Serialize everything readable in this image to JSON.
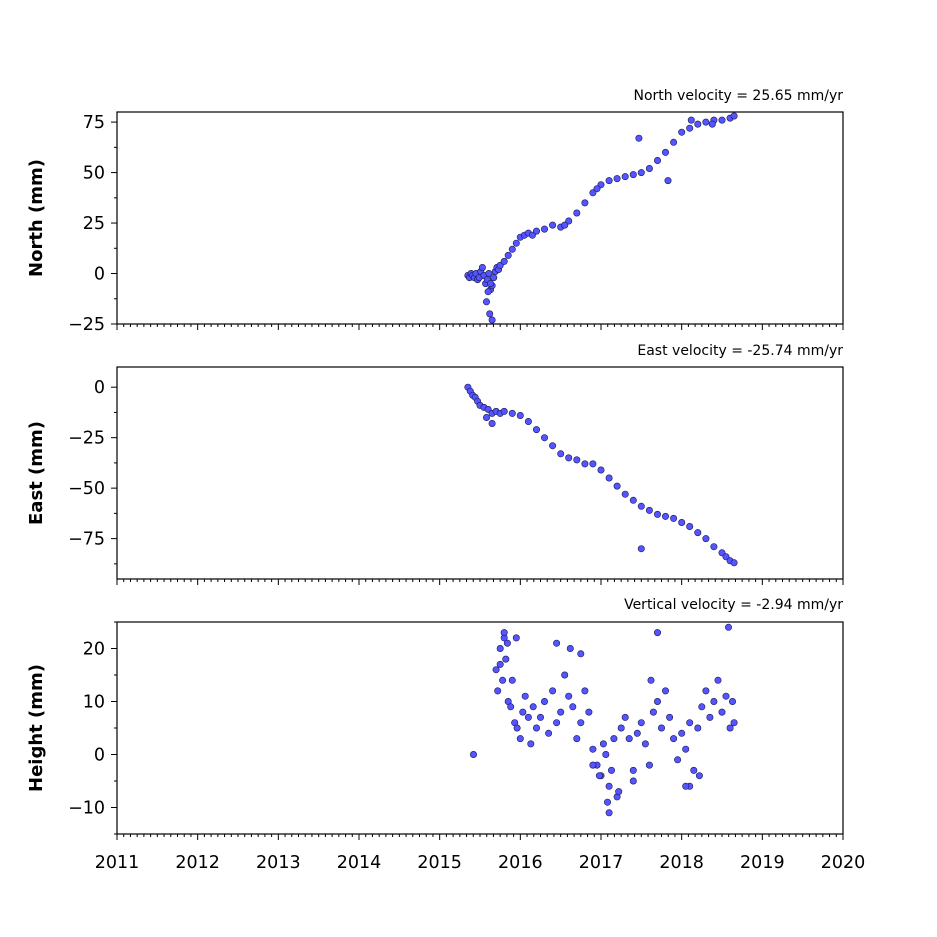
{
  "chart_data": [
    {
      "type": "scatter",
      "title": "North velocity = 25.65 mm/yr",
      "ylabel": "North (mm)",
      "xlim": [
        2011,
        2020
      ],
      "ylim": [
        -25,
        80
      ],
      "yticks": [
        -25,
        0,
        25,
        50,
        75
      ],
      "ytick_labels": [
        "−25",
        "0",
        "25",
        "50",
        "75"
      ],
      "marker_color": "#5555ff",
      "series": [
        {
          "x": [
            2015.35,
            2015.37,
            2015.39,
            2015.41,
            2015.43,
            2015.45,
            2015.47,
            2015.49,
            2015.51,
            2015.53,
            2015.55,
            2015.57,
            2015.59,
            2015.61,
            2015.63,
            2015.65,
            2015.67,
            2015.69,
            2015.71,
            2015.73,
            2015.75,
            2015.8,
            2015.85,
            2015.9,
            2015.95,
            2016.0,
            2016.05,
            2016.1,
            2016.15,
            2016.2,
            2016.3,
            2016.4,
            2016.5,
            2016.6,
            2016.7,
            2016.8,
            2016.9,
            2017.0,
            2017.1,
            2017.2,
            2017.3,
            2017.4,
            2017.5,
            2017.6,
            2017.7,
            2017.8,
            2017.9,
            2018.0,
            2018.1,
            2018.2,
            2018.3,
            2018.4,
            2018.5,
            2018.6,
            2018.65,
            2017.47,
            2017.83,
            2015.58,
            2015.62,
            2015.65,
            2015.6,
            2015.63,
            2018.12,
            2018.38,
            2016.55,
            2016.95
          ],
          "y": [
            -1,
            -2,
            0,
            -1,
            -2,
            0,
            -3,
            -2,
            1,
            3,
            -1,
            -5,
            -3,
            0,
            -8,
            -6,
            -2,
            1,
            3,
            2,
            4,
            6,
            9,
            12,
            15,
            18,
            19,
            20,
            19,
            21,
            22,
            24,
            23,
            26,
            30,
            35,
            40,
            44,
            46,
            47,
            48,
            49,
            50,
            52,
            56,
            60,
            65,
            70,
            72,
            74,
            75,
            76,
            76,
            77,
            78,
            67,
            46,
            -14,
            -20,
            -23,
            -9,
            -5,
            76,
            74,
            24,
            42
          ]
        }
      ]
    },
    {
      "type": "scatter",
      "title": "East velocity = -25.74 mm/yr",
      "ylabel": "East (mm)",
      "xlim": [
        2011,
        2020
      ],
      "ylim": [
        -95,
        10
      ],
      "yticks": [
        -75,
        -50,
        -25,
        0
      ],
      "ytick_labels": [
        "−75",
        "−50",
        "−25",
        "0"
      ],
      "marker_color": "#5555ff",
      "series": [
        {
          "x": [
            2015.35,
            2015.38,
            2015.41,
            2015.44,
            2015.47,
            2015.5,
            2015.55,
            2015.6,
            2015.65,
            2015.7,
            2015.75,
            2015.8,
            2015.9,
            2016.0,
            2016.1,
            2016.2,
            2016.3,
            2016.4,
            2016.5,
            2016.6,
            2016.7,
            2016.8,
            2016.9,
            2017.0,
            2017.1,
            2017.2,
            2017.3,
            2017.4,
            2017.5,
            2017.6,
            2017.7,
            2017.8,
            2017.9,
            2018.0,
            2018.1,
            2018.2,
            2018.3,
            2018.4,
            2018.5,
            2018.55,
            2018.6,
            2018.65,
            2017.5,
            2015.65,
            2015.58
          ],
          "y": [
            0,
            -2,
            -4,
            -5,
            -7,
            -9,
            -10,
            -11,
            -13,
            -12,
            -13,
            -12,
            -13,
            -14,
            -17,
            -21,
            -25,
            -29,
            -33,
            -35,
            -36,
            -38,
            -38,
            -41,
            -45,
            -49,
            -53,
            -56,
            -59,
            -61,
            -63,
            -64,
            -65,
            -67,
            -69,
            -72,
            -75,
            -79,
            -82,
            -84,
            -86,
            -87,
            -80,
            -18,
            -15
          ]
        }
      ]
    },
    {
      "type": "scatter",
      "title": "Vertical velocity = -2.94 mm/yr",
      "ylabel": "Height (mm)",
      "xlim": [
        2011,
        2020
      ],
      "ylim": [
        -15,
        25
      ],
      "yticks": [
        -10,
        0,
        10,
        20
      ],
      "ytick_labels": [
        "−10",
        "0",
        "10",
        "20"
      ],
      "xtick_labels": [
        "2011",
        "2012",
        "2013",
        "2014",
        "2015",
        "2016",
        "2017",
        "2018",
        "2019",
        "2020"
      ],
      "marker_color": "#5555ff",
      "series": [
        {
          "x": [
            2015.42,
            2015.7,
            2015.72,
            2015.75,
            2015.78,
            2015.8,
            2015.82,
            2015.85,
            2015.88,
            2015.9,
            2015.93,
            2015.96,
            2016.0,
            2016.03,
            2016.06,
            2016.1,
            2016.13,
            2016.16,
            2016.2,
            2016.25,
            2016.3,
            2016.35,
            2016.4,
            2016.45,
            2016.5,
            2016.55,
            2016.6,
            2016.65,
            2016.7,
            2016.75,
            2016.8,
            2016.85,
            2016.9,
            2016.95,
            2017.0,
            2017.03,
            2017.06,
            2017.1,
            2017.13,
            2017.16,
            2017.2,
            2017.25,
            2017.3,
            2017.35,
            2017.4,
            2017.45,
            2017.5,
            2017.55,
            2017.6,
            2017.65,
            2017.7,
            2017.75,
            2017.8,
            2017.85,
            2017.9,
            2017.95,
            2018.0,
            2018.05,
            2018.1,
            2018.15,
            2018.2,
            2018.25,
            2018.3,
            2018.35,
            2018.4,
            2018.45,
            2018.5,
            2018.55,
            2018.6,
            2018.63,
            2018.65,
            2015.8,
            2015.84,
            2015.95,
            2016.45,
            2016.62,
            2016.75,
            2017.1,
            2017.7,
            2018.58,
            2017.08,
            2016.98,
            2017.22,
            2017.62,
            2018.1,
            2018.22,
            2015.75,
            2016.9,
            2017.4,
            2018.05
          ],
          "y": [
            0,
            16,
            12,
            20,
            14,
            22,
            18,
            10,
            9,
            14,
            6,
            5,
            3,
            8,
            11,
            7,
            2,
            9,
            5,
            7,
            10,
            4,
            12,
            6,
            8,
            15,
            11,
            9,
            3,
            6,
            12,
            8,
            1,
            -2,
            -4,
            2,
            0,
            -6,
            -3,
            3,
            -8,
            5,
            7,
            3,
            -3,
            4,
            6,
            2,
            -2,
            8,
            10,
            5,
            12,
            7,
            3,
            -1,
            4,
            1,
            6,
            -3,
            5,
            9,
            12,
            7,
            10,
            14,
            8,
            11,
            5,
            10,
            6,
            23,
            21,
            22,
            21,
            20,
            19,
            -11,
            23,
            24,
            -9,
            -4,
            -7,
            14,
            -6,
            -4,
            17,
            -2,
            -5,
            -6
          ]
        }
      ]
    }
  ]
}
